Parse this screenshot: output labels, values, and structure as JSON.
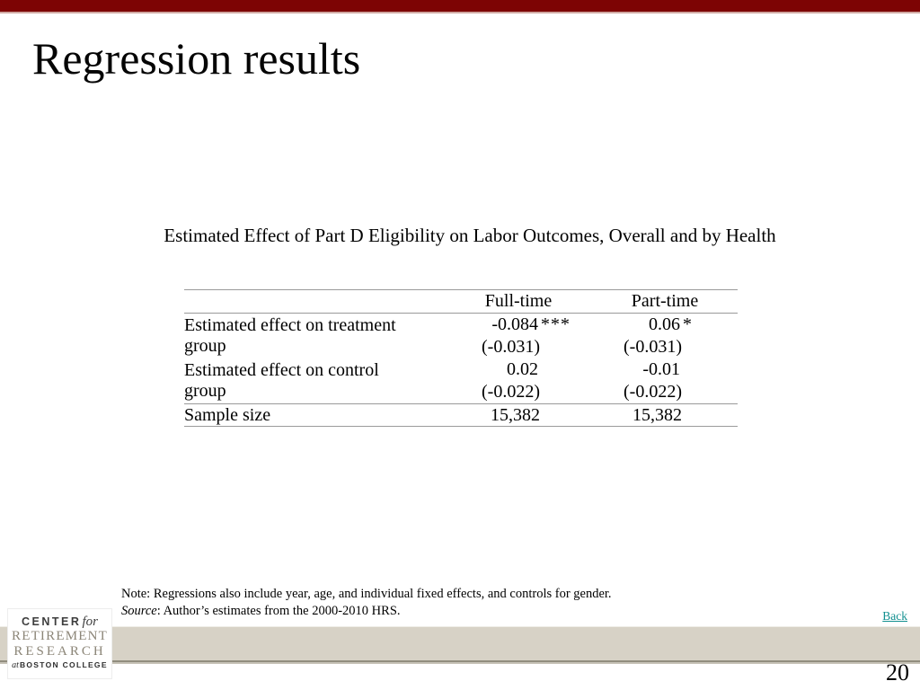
{
  "slide": {
    "title": "Regression results",
    "page_number": "20",
    "back_link_label": "Back"
  },
  "table": {
    "caption": "Estimated Effect of Part D Eligibility on Labor Outcomes, Overall and by Health",
    "columns": [
      "",
      "Full-time",
      "Part-time"
    ],
    "rows": [
      {
        "label": "Estimated effect on treatment group",
        "full_time": {
          "coef": "-0.084",
          "stars": "***",
          "se": "(-0.031)"
        },
        "part_time": {
          "coef": "0.06",
          "stars": "*",
          "se": "(-0.031)"
        }
      },
      {
        "label": "Estimated effect on control group",
        "full_time": {
          "coef": "0.02",
          "stars": "",
          "se": "(-0.022)"
        },
        "part_time": {
          "coef": "-0.01",
          "stars": "",
          "se": "(-0.022)"
        }
      },
      {
        "label": "Sample size",
        "full_time": {
          "value": "15,382"
        },
        "part_time": {
          "value": "15,382"
        }
      }
    ]
  },
  "footnotes": {
    "note": "Note: Regressions also include year, age, and individual fixed effects, and controls for gender.",
    "source_label": "Source",
    "source_rest": ": Author’s estimates from the 2000-2010 HRS."
  },
  "logo": {
    "line1_main": "CENTER",
    "line1_italic": "for",
    "line2": "RETIREMENT",
    "line3": "RESEARCH",
    "line4_italic": "at",
    "line4_main": "BOSTON COLLEGE"
  },
  "colors": {
    "accent_maroon": "#7d0404",
    "footer_band": "#d7d2c6",
    "link_teal": "#118f8f",
    "table_line_gray": "#9a9a9a"
  }
}
